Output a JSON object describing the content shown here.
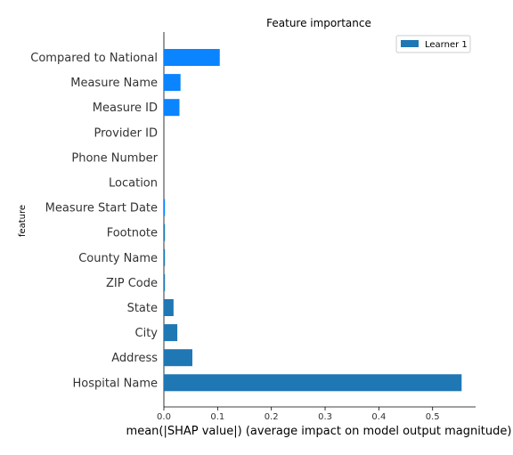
{
  "chart_data": {
    "type": "bar",
    "orientation": "horizontal",
    "title": "Feature importance",
    "xlabel": "mean(|SHAP value|) (average impact on model output magnitude)",
    "ylabel": "feature",
    "xlim": [
      0,
      0.58
    ],
    "xticks": [
      "0.0",
      "0.1",
      "0.2",
      "0.3",
      "0.4",
      "0.5"
    ],
    "legend": {
      "position": "top-right",
      "entries": [
        {
          "label": "Learner 1",
          "color": "#1f77b4"
        }
      ]
    },
    "categories": [
      "Compared to National",
      "Measure Name",
      "Measure ID",
      "Provider ID",
      "Phone Number",
      "Location",
      "Measure Start Date",
      "Footnote",
      "County Name",
      "ZIP Code",
      "State",
      "City",
      "Address",
      "Hospital Name"
    ],
    "values": [
      0.104,
      0.031,
      0.029,
      0.0,
      0.0,
      0.0,
      0.002,
      0.002,
      0.002,
      0.002,
      0.018,
      0.025,
      0.053,
      0.554
    ],
    "colors": [
      "#0a84ff",
      "#0a84ff",
      "#0a84ff",
      "#0a84ff",
      "#0a84ff",
      "#0a84ff",
      "#0a84ff",
      "#1f77b4",
      "#1f77b4",
      "#1f77b4",
      "#1f77b4",
      "#1f77b4",
      "#1f77b4",
      "#1f77b4"
    ]
  }
}
